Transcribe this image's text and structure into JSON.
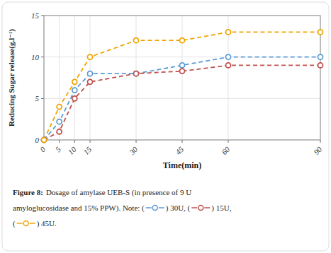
{
  "chart_data": {
    "type": "line",
    "x": [
      0,
      5,
      10,
      15,
      30,
      45,
      60,
      90
    ],
    "series": [
      {
        "color": "#5b9bd5",
        "values": [
          0,
          2.2,
          6.0,
          8.0,
          8.0,
          9.0,
          10.0,
          10.0
        ]
      },
      {
        "color": "#c0504d",
        "values": [
          0,
          1.0,
          5.0,
          7.0,
          8.0,
          8.3,
          9.0,
          9.0
        ]
      },
      {
        "color": "#f0a500",
        "values": [
          0,
          4.0,
          7.0,
          10.0,
          12.0,
          12.0,
          13.0,
          13.0
        ]
      }
    ],
    "marker": "circle",
    "line_style": "dashed",
    "x_label": "Time(min)",
    "y_label": "Reducing Sugar release(g.l⁻¹)",
    "xlim": [
      0,
      90
    ],
    "ylim": [
      0,
      15
    ],
    "xticks": [
      0,
      5,
      10,
      15,
      30,
      45,
      60,
      90
    ],
    "yticks": [
      0,
      5,
      10,
      15
    ],
    "grid": true,
    "annotations": [
      "Figure 8:",
      "Dosage of amylase UEB-S (in presence of 9 U",
      "amyloglucosidase and 15% PPW). Note: (",
      ") 30U, (",
      ") 15U,",
      "(",
      ") 45U."
    ]
  }
}
